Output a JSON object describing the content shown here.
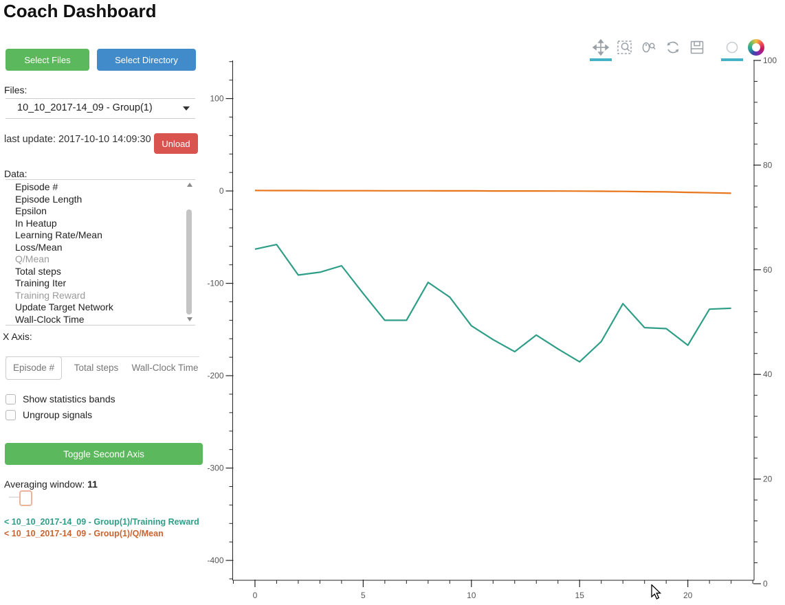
{
  "title": "Coach Dashboard",
  "buttons": {
    "select_files": "Select Files",
    "select_directory": "Select Directory",
    "unload": "Unload",
    "toggle_second_axis": "Toggle Second Axis"
  },
  "files": {
    "label": "Files:",
    "selected": "10_10_2017-14_09 - Group(1)"
  },
  "last_update": "last update: 2017-10-10 14:09:30",
  "data_list": {
    "label": "Data:",
    "items": [
      {
        "label": "Episode #",
        "dimmed": false
      },
      {
        "label": "Episode Length",
        "dimmed": false
      },
      {
        "label": "Epsilon",
        "dimmed": false
      },
      {
        "label": "In Heatup",
        "dimmed": false
      },
      {
        "label": "Learning Rate/Mean",
        "dimmed": false
      },
      {
        "label": "Loss/Mean",
        "dimmed": false
      },
      {
        "label": "Q/Mean",
        "dimmed": true
      },
      {
        "label": "Total steps",
        "dimmed": false
      },
      {
        "label": "Training Iter",
        "dimmed": false
      },
      {
        "label": "Training Reward",
        "dimmed": true
      },
      {
        "label": "Update Target Network",
        "dimmed": false
      },
      {
        "label": "Wall-Clock Time",
        "dimmed": false
      }
    ]
  },
  "x_axis": {
    "label": "X Axis:",
    "options": [
      "Episode #",
      "Total steps",
      "Wall-Clock Time"
    ],
    "selected": "Episode #"
  },
  "checkboxes": [
    {
      "label": "Show statistics bands",
      "checked": false
    },
    {
      "label": "Ungroup signals",
      "checked": false
    }
  ],
  "averaging": {
    "label": "Averaging window:",
    "value": "11"
  },
  "legend": [
    {
      "label": "< 10_10_2017-14_09 - Group(1)/Training Reward",
      "color": "#2e9e88"
    },
    {
      "label": "< 10_10_2017-14_09 - Group(1)/Q/Mean",
      "color": "#c96430"
    }
  ],
  "toolbar": {
    "tools": [
      "pan",
      "box-zoom",
      "wheel-zoom",
      "reset",
      "save",
      "hover"
    ],
    "active": [
      "pan",
      "hover"
    ],
    "active_color": "#45b1c4"
  },
  "chart_data": {
    "type": "line",
    "title": "",
    "xlabel": "",
    "ylabel": "",
    "grid": false,
    "x": [
      0,
      1,
      2,
      3,
      4,
      5,
      6,
      7,
      8,
      9,
      10,
      11,
      12,
      13,
      14,
      15,
      16,
      17,
      18,
      19,
      20,
      21,
      22
    ],
    "series": [
      {
        "name": "10_10_2017-14_09 - Group(1)/Training Reward",
        "color": "#2e9e88",
        "axis": "left",
        "values": [
          -63,
          -58,
          -91,
          -88,
          -81,
          -111,
          -140,
          -140,
          -99,
          -115,
          -146,
          -161,
          -174,
          -156,
          -171,
          -185,
          -163,
          -122,
          -148,
          -149,
          -167,
          -128,
          -127
        ]
      },
      {
        "name": "10_10_2017-14_09 - Group(1)/Q/Mean",
        "color": "#e8751a",
        "axis": "left",
        "values": [
          0.5,
          0.4,
          0.4,
          0.3,
          0.3,
          0.3,
          0.2,
          0.2,
          0.2,
          0.1,
          0.1,
          0,
          0,
          0,
          -0.1,
          -0.2,
          -0.3,
          -0.5,
          -0.8,
          -1,
          -1.5,
          -2,
          -2.5
        ]
      }
    ],
    "x_axis": {
      "ticks": [
        0,
        5,
        10,
        15,
        20
      ],
      "minor_step": 1,
      "range": [
        -1.03,
        23.06
      ]
    },
    "left_axis": {
      "ticks": [
        100,
        0,
        -100,
        -200,
        -300,
        -400
      ],
      "minor_step": 20,
      "range": [
        -421.5,
        141.3
      ]
    },
    "right_axis": {
      "ticks": [
        100,
        80,
        60,
        40,
        20,
        0
      ],
      "minor_step": 4,
      "range": [
        0,
        100
      ]
    },
    "legend_position": "external-left"
  }
}
